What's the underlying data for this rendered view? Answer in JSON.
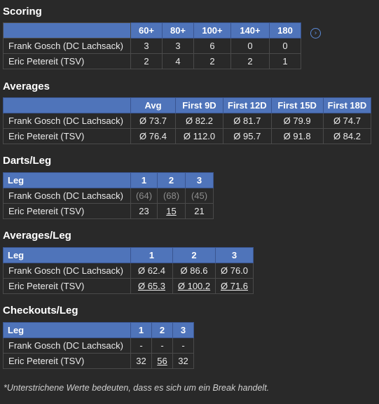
{
  "scoring": {
    "title": "Scoring",
    "headers": [
      "",
      "60+",
      "80+",
      "100+",
      "140+",
      "180"
    ],
    "rows": [
      {
        "name": "Frank Gosch (DC Lachsack)",
        "values": [
          "3",
          "3",
          "6",
          "0",
          "0"
        ]
      },
      {
        "name": "Eric Petereit (TSV)",
        "values": [
          "2",
          "4",
          "2",
          "2",
          "1"
        ]
      }
    ],
    "info_icon": "chevron-right-circle-icon"
  },
  "averages": {
    "title": "Averages",
    "headers": [
      "",
      "Avg",
      "First 9D",
      "First 12D",
      "First 15D",
      "First 18D"
    ],
    "rows": [
      {
        "name": "Frank Gosch (DC Lachsack)",
        "values": [
          "Ø 73.7",
          "Ø 82.2",
          "Ø 81.7",
          "Ø 79.9",
          "Ø 74.7"
        ]
      },
      {
        "name": "Eric Petereit (TSV)",
        "values": [
          "Ø 76.4",
          "Ø 112.0",
          "Ø 95.7",
          "Ø 91.8",
          "Ø 84.2"
        ]
      }
    ]
  },
  "darts_leg": {
    "title": "Darts/Leg",
    "headers": [
      "Leg",
      "1",
      "2",
      "3"
    ],
    "rows": [
      {
        "name": "Frank Gosch (DC Lachsack)",
        "values": [
          "(64)",
          "(68)",
          "(45)"
        ]
      },
      {
        "name": "Eric Petereit (TSV)",
        "values": [
          "23",
          "15",
          "21"
        ]
      }
    ]
  },
  "averages_leg": {
    "title": "Averages/Leg",
    "headers": [
      "Leg",
      "1",
      "2",
      "3"
    ],
    "rows": [
      {
        "name": "Frank Gosch (DC Lachsack)",
        "values": [
          "Ø 62.4",
          "Ø 86.6",
          "Ø 76.0"
        ]
      },
      {
        "name": "Eric Petereit (TSV)",
        "values": [
          "Ø 65.3",
          "Ø 100.2",
          "Ø 71.6"
        ]
      }
    ]
  },
  "checkouts_leg": {
    "title": "Checkouts/Leg",
    "headers": [
      "Leg",
      "1",
      "2",
      "3"
    ],
    "rows": [
      {
        "name": "Frank Gosch (DC Lachsack)",
        "values": [
          "-",
          "-",
          "-"
        ]
      },
      {
        "name": "Eric Petereit (TSV)",
        "values": [
          "32",
          "56",
          "32"
        ]
      }
    ]
  },
  "footnote": "*Unterstrichene Werte bedeuten, dass es sich um ein Break handelt.",
  "colors": {
    "header_bg": "#4f74ba",
    "page_bg": "#292929",
    "info_icon": "#5b8ad8"
  }
}
